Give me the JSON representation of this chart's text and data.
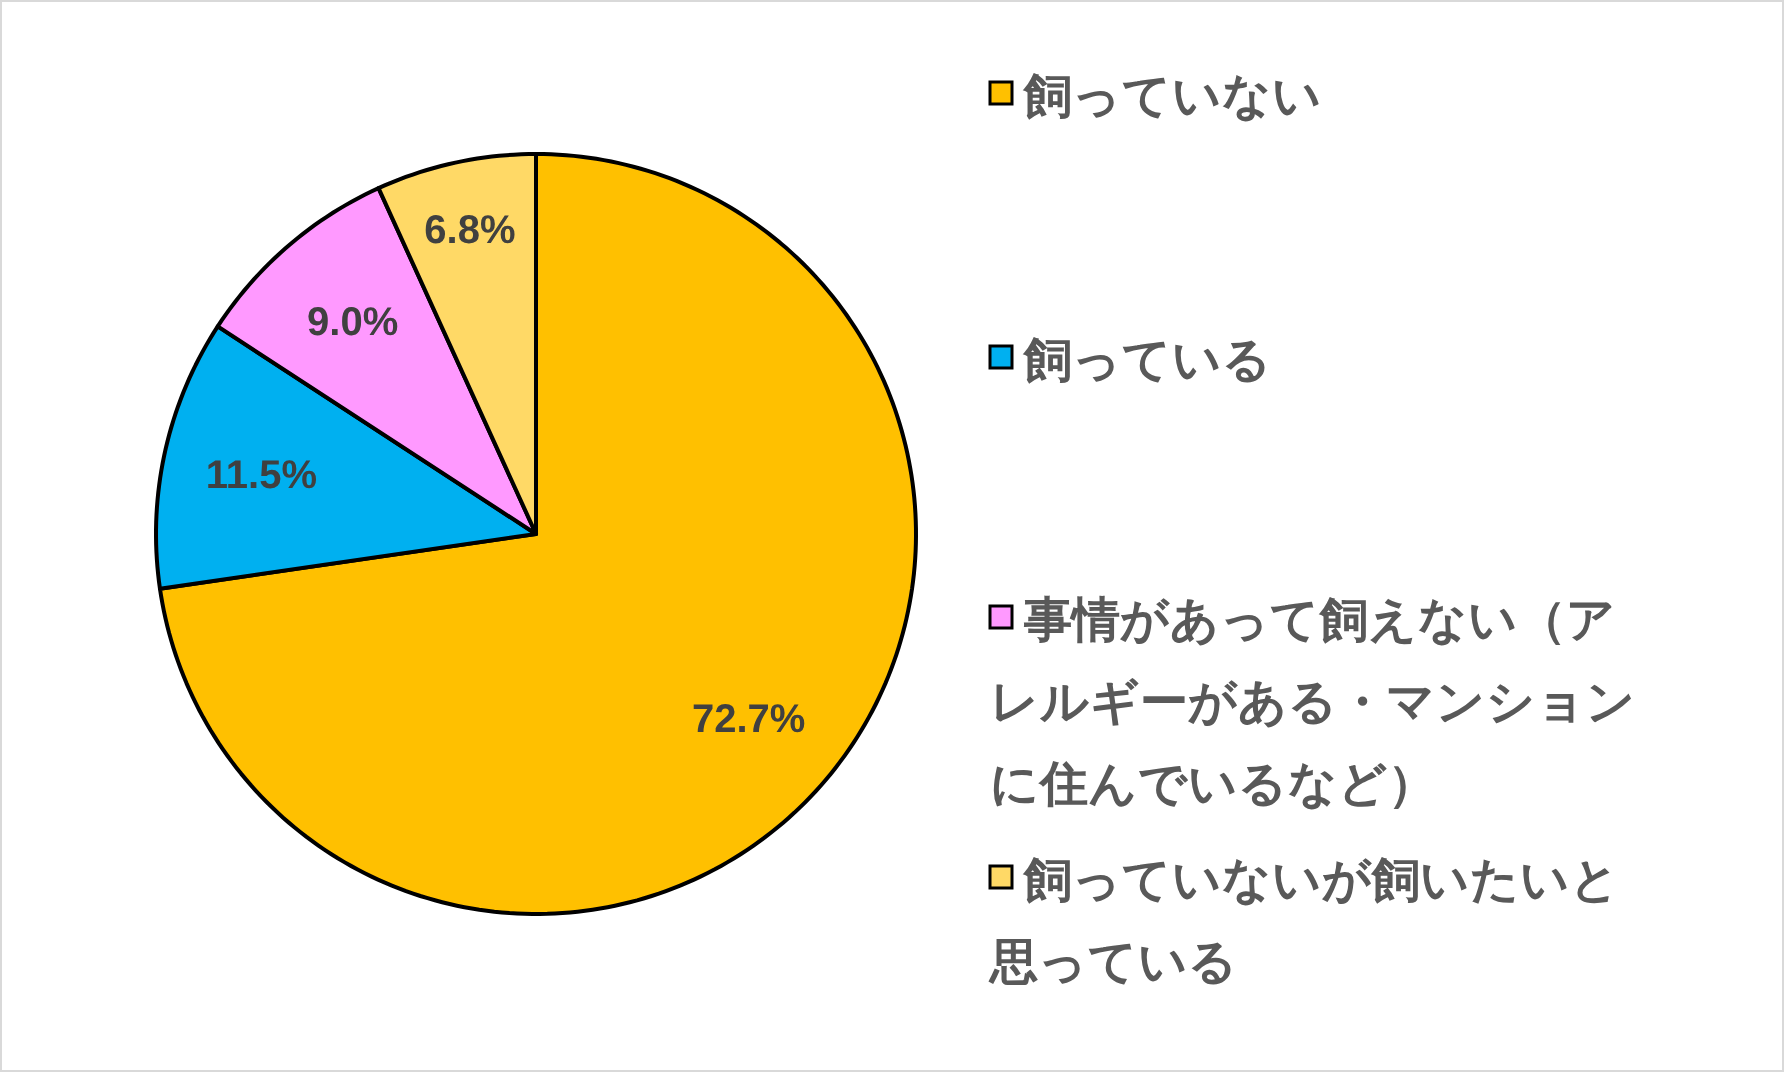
{
  "chart_data": {
    "type": "pie",
    "categories": [
      "飼っていない",
      "飼っている",
      "事情があって飼えない（アレルギーがある・マンションに住んでいるなど）",
      "飼っていないが飼いたいと思っている"
    ],
    "values": [
      72.7,
      11.5,
      9.0,
      6.8
    ],
    "colors": [
      "#ffc000",
      "#00b0f0",
      "#ff99ff",
      "#ffd966"
    ],
    "value_labels": [
      "72.7%",
      "11.5%",
      "9.0%",
      "6.8%"
    ],
    "legend": "right"
  }
}
